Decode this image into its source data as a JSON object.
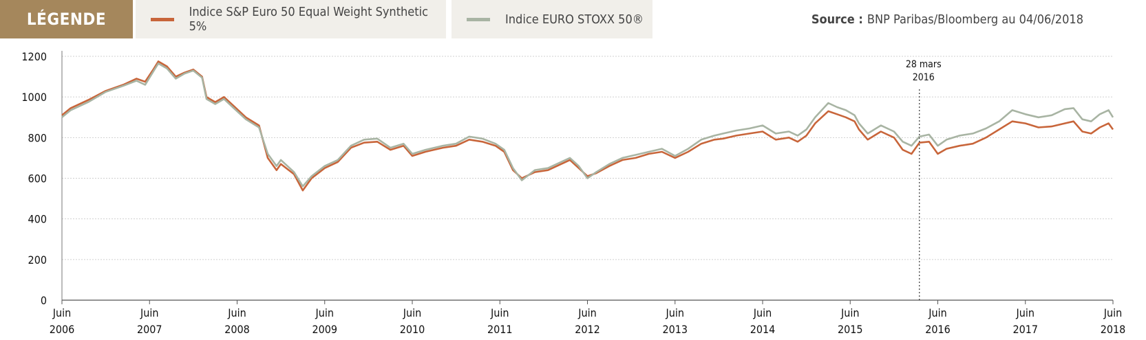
{
  "header": {
    "legend_title": "LÉGENDE",
    "source_label": "Source :",
    "source_text": "BNP Paribas/Bloomberg au 04/06/2018"
  },
  "colors": {
    "brand": "#a5875c",
    "sp_series": "#c8653a",
    "stoxx_series": "#a8b4a3",
    "grid": "#cfcfcf"
  },
  "chart_data": {
    "type": "line",
    "title": "",
    "xlabel": "",
    "ylabel": "",
    "ylim": [
      0,
      1200
    ],
    "yticks": [
      0,
      200,
      400,
      600,
      800,
      1000,
      1200
    ],
    "xlim": [
      "2006-06",
      "2018-06"
    ],
    "xticks": [
      {
        "top": "Juin",
        "bottom": "2006",
        "t": 2006.45
      },
      {
        "top": "Juin",
        "bottom": "2007",
        "t": 2007.45
      },
      {
        "top": "Juin",
        "bottom": "2008",
        "t": 2008.45
      },
      {
        "top": "Juin",
        "bottom": "2009",
        "t": 2009.45
      },
      {
        "top": "Juin",
        "bottom": "2010",
        "t": 2010.45
      },
      {
        "top": "Juin",
        "bottom": "2011",
        "t": 2011.45
      },
      {
        "top": "Juin",
        "bottom": "2012",
        "t": 2012.45
      },
      {
        "top": "Juin",
        "bottom": "2013",
        "t": 2013.45
      },
      {
        "top": "Juin",
        "bottom": "2014",
        "t": 2014.45
      },
      {
        "top": "Juin",
        "bottom": "2015",
        "t": 2015.45
      },
      {
        "top": "Juin",
        "bottom": "2016",
        "t": 2016.45
      },
      {
        "top": "Juin",
        "bottom": "2017",
        "t": 2017.45
      },
      {
        "top": "Juin",
        "bottom": "2018",
        "t": 2018.45
      }
    ],
    "grid": true,
    "legend_position": "top",
    "annotation": {
      "line1": "28 mars",
      "line2": "2016",
      "t": 2016.24
    },
    "series": [
      {
        "name": "Indice S&P Euro 50 Equal Weight Synthetic 5%",
        "color": "#c8653a",
        "points": [
          [
            2006.45,
            910
          ],
          [
            2006.55,
            945
          ],
          [
            2006.75,
            985
          ],
          [
            2006.95,
            1030
          ],
          [
            2007.15,
            1060
          ],
          [
            2007.3,
            1090
          ],
          [
            2007.4,
            1075
          ],
          [
            2007.5,
            1140
          ],
          [
            2007.55,
            1175
          ],
          [
            2007.65,
            1150
          ],
          [
            2007.75,
            1100
          ],
          [
            2007.85,
            1120
          ],
          [
            2007.95,
            1135
          ],
          [
            2008.05,
            1100
          ],
          [
            2008.1,
            1000
          ],
          [
            2008.2,
            975
          ],
          [
            2008.3,
            1000
          ],
          [
            2008.4,
            960
          ],
          [
            2008.55,
            900
          ],
          [
            2008.7,
            860
          ],
          [
            2008.8,
            700
          ],
          [
            2008.9,
            640
          ],
          [
            2008.95,
            670
          ],
          [
            2009.1,
            620
          ],
          [
            2009.2,
            540
          ],
          [
            2009.3,
            600
          ],
          [
            2009.45,
            650
          ],
          [
            2009.6,
            680
          ],
          [
            2009.75,
            750
          ],
          [
            2009.9,
            775
          ],
          [
            2010.05,
            780
          ],
          [
            2010.2,
            740
          ],
          [
            2010.35,
            760
          ],
          [
            2010.45,
            710
          ],
          [
            2010.6,
            730
          ],
          [
            2010.8,
            750
          ],
          [
            2010.95,
            760
          ],
          [
            2011.1,
            790
          ],
          [
            2011.25,
            780
          ],
          [
            2011.4,
            760
          ],
          [
            2011.5,
            730
          ],
          [
            2011.6,
            640
          ],
          [
            2011.7,
            600
          ],
          [
            2011.85,
            630
          ],
          [
            2012.0,
            640
          ],
          [
            2012.15,
            670
          ],
          [
            2012.25,
            690
          ],
          [
            2012.35,
            650
          ],
          [
            2012.45,
            610
          ],
          [
            2012.55,
            625
          ],
          [
            2012.7,
            660
          ],
          [
            2012.85,
            690
          ],
          [
            2013.0,
            700
          ],
          [
            2013.15,
            720
          ],
          [
            2013.3,
            730
          ],
          [
            2013.45,
            700
          ],
          [
            2013.6,
            730
          ],
          [
            2013.75,
            770
          ],
          [
            2013.9,
            790
          ],
          [
            2014.0,
            795
          ],
          [
            2014.15,
            810
          ],
          [
            2014.3,
            820
          ],
          [
            2014.45,
            830
          ],
          [
            2014.6,
            790
          ],
          [
            2014.75,
            800
          ],
          [
            2014.85,
            780
          ],
          [
            2014.95,
            810
          ],
          [
            2015.05,
            870
          ],
          [
            2015.2,
            930
          ],
          [
            2015.3,
            915
          ],
          [
            2015.4,
            900
          ],
          [
            2015.5,
            880
          ],
          [
            2015.55,
            840
          ],
          [
            2015.65,
            790
          ],
          [
            2015.8,
            830
          ],
          [
            2015.95,
            800
          ],
          [
            2016.05,
            740
          ],
          [
            2016.15,
            720
          ],
          [
            2016.24,
            775
          ],
          [
            2016.35,
            780
          ],
          [
            2016.45,
            720
          ],
          [
            2016.55,
            745
          ],
          [
            2016.7,
            760
          ],
          [
            2016.85,
            770
          ],
          [
            2017.0,
            800
          ],
          [
            2017.15,
            840
          ],
          [
            2017.3,
            880
          ],
          [
            2017.45,
            870
          ],
          [
            2017.6,
            850
          ],
          [
            2017.75,
            855
          ],
          [
            2017.9,
            870
          ],
          [
            2018.0,
            880
          ],
          [
            2018.1,
            830
          ],
          [
            2018.2,
            820
          ],
          [
            2018.3,
            850
          ],
          [
            2018.4,
            870
          ],
          [
            2018.45,
            840
          ]
        ]
      },
      {
        "name": "Indice EURO STOXX 50®",
        "color": "#a8b4a3",
        "points": [
          [
            2006.45,
            900
          ],
          [
            2006.55,
            935
          ],
          [
            2006.75,
            975
          ],
          [
            2006.95,
            1025
          ],
          [
            2007.15,
            1055
          ],
          [
            2007.3,
            1080
          ],
          [
            2007.4,
            1060
          ],
          [
            2007.5,
            1130
          ],
          [
            2007.55,
            1165
          ],
          [
            2007.65,
            1140
          ],
          [
            2007.75,
            1090
          ],
          [
            2007.85,
            1115
          ],
          [
            2007.95,
            1130
          ],
          [
            2008.05,
            1095
          ],
          [
            2008.1,
            990
          ],
          [
            2008.2,
            965
          ],
          [
            2008.3,
            990
          ],
          [
            2008.4,
            950
          ],
          [
            2008.55,
            890
          ],
          [
            2008.7,
            850
          ],
          [
            2008.8,
            720
          ],
          [
            2008.9,
            660
          ],
          [
            2008.95,
            690
          ],
          [
            2009.1,
            630
          ],
          [
            2009.2,
            560
          ],
          [
            2009.3,
            610
          ],
          [
            2009.45,
            660
          ],
          [
            2009.6,
            690
          ],
          [
            2009.75,
            760
          ],
          [
            2009.9,
            790
          ],
          [
            2010.05,
            795
          ],
          [
            2010.2,
            750
          ],
          [
            2010.35,
            770
          ],
          [
            2010.45,
            720
          ],
          [
            2010.6,
            740
          ],
          [
            2010.8,
            760
          ],
          [
            2010.95,
            770
          ],
          [
            2011.1,
            805
          ],
          [
            2011.25,
            795
          ],
          [
            2011.4,
            770
          ],
          [
            2011.5,
            740
          ],
          [
            2011.6,
            650
          ],
          [
            2011.7,
            590
          ],
          [
            2011.85,
            640
          ],
          [
            2012.0,
            650
          ],
          [
            2012.15,
            680
          ],
          [
            2012.25,
            700
          ],
          [
            2012.35,
            660
          ],
          [
            2012.45,
            600
          ],
          [
            2012.55,
            630
          ],
          [
            2012.7,
            670
          ],
          [
            2012.85,
            700
          ],
          [
            2013.0,
            715
          ],
          [
            2013.15,
            730
          ],
          [
            2013.3,
            745
          ],
          [
            2013.45,
            710
          ],
          [
            2013.6,
            745
          ],
          [
            2013.75,
            790
          ],
          [
            2013.9,
            810
          ],
          [
            2014.0,
            820
          ],
          [
            2014.15,
            835
          ],
          [
            2014.3,
            845
          ],
          [
            2014.45,
            860
          ],
          [
            2014.6,
            820
          ],
          [
            2014.75,
            830
          ],
          [
            2014.85,
            810
          ],
          [
            2014.95,
            840
          ],
          [
            2015.05,
            900
          ],
          [
            2015.2,
            970
          ],
          [
            2015.3,
            950
          ],
          [
            2015.4,
            935
          ],
          [
            2015.5,
            910
          ],
          [
            2015.55,
            870
          ],
          [
            2015.65,
            820
          ],
          [
            2015.8,
            860
          ],
          [
            2015.95,
            830
          ],
          [
            2016.05,
            780
          ],
          [
            2016.15,
            760
          ],
          [
            2016.24,
            805
          ],
          [
            2016.35,
            815
          ],
          [
            2016.45,
            760
          ],
          [
            2016.55,
            790
          ],
          [
            2016.7,
            810
          ],
          [
            2016.85,
            820
          ],
          [
            2017.0,
            845
          ],
          [
            2017.15,
            880
          ],
          [
            2017.3,
            935
          ],
          [
            2017.45,
            915
          ],
          [
            2017.6,
            900
          ],
          [
            2017.75,
            910
          ],
          [
            2017.9,
            940
          ],
          [
            2018.0,
            945
          ],
          [
            2018.1,
            890
          ],
          [
            2018.2,
            880
          ],
          [
            2018.3,
            915
          ],
          [
            2018.4,
            935
          ],
          [
            2018.45,
            900
          ]
        ]
      }
    ]
  }
}
